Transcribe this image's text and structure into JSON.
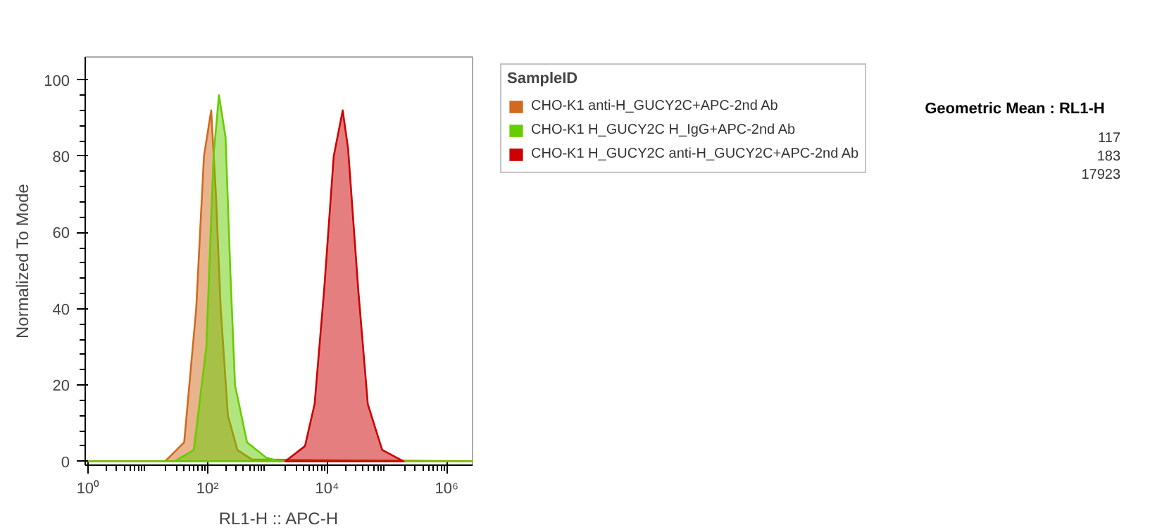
{
  "chart_data": {
    "type": "area",
    "xlabel": "RL1-H :: APC-H",
    "ylabel": "Normalized To Mode",
    "log": "x",
    "xlim": [
      0.9,
      2700000
    ],
    "ylim": [
      -1,
      106
    ],
    "xticks": [
      {
        "value": 1,
        "label": "10⁰"
      },
      {
        "value": 100,
        "label": "10²"
      },
      {
        "value": 10000,
        "label": "10⁴"
      },
      {
        "value": 1000000,
        "label": "10⁶"
      }
    ],
    "yticks": [
      0,
      20,
      40,
      60,
      80,
      100
    ],
    "legend": "right",
    "legend_title": "SampleID",
    "annotations": [
      "Geometric Mean : RL1-H",
      "117",
      "183",
      "17923"
    ],
    "series": [
      {
        "name": "CHO-K1 anti-H_GUCY2C+APC-2nd Ab",
        "color": "#d2691e",
        "x": [
          0.9,
          19.5,
          40.7,
          64.6,
          87.1,
          115,
          138,
          166,
          219,
          316,
          550,
          2700000
        ],
        "values": [
          0,
          0,
          5,
          40,
          80,
          92,
          70,
          40,
          12,
          3,
          0.5,
          0
        ]
      },
      {
        "name": "CHO-K1 H_GUCY2C H_IgG+APC-2nd Ab",
        "color": "#66cc00",
        "x": [
          0.9,
          28.2,
          58.9,
          95.5,
          126,
          155,
          200,
          240,
          288,
          457,
          955,
          1585,
          2700000
        ],
        "values": [
          0,
          0,
          3,
          30,
          80,
          96,
          85,
          50,
          20,
          5,
          1,
          0,
          0
        ]
      },
      {
        "name": "CHO-K1 H_GUCY2C anti-H_GUCY2C+APC-2nd Ab",
        "color": "#cc0000",
        "x": [
          1995,
          4266,
          6166,
          8913,
          12882,
          18197,
          22387,
          33113,
          47863,
          83176,
          190546
        ],
        "values": [
          0,
          4,
          15,
          45,
          80,
          92,
          82,
          45,
          15,
          3,
          0
        ]
      }
    ]
  }
}
